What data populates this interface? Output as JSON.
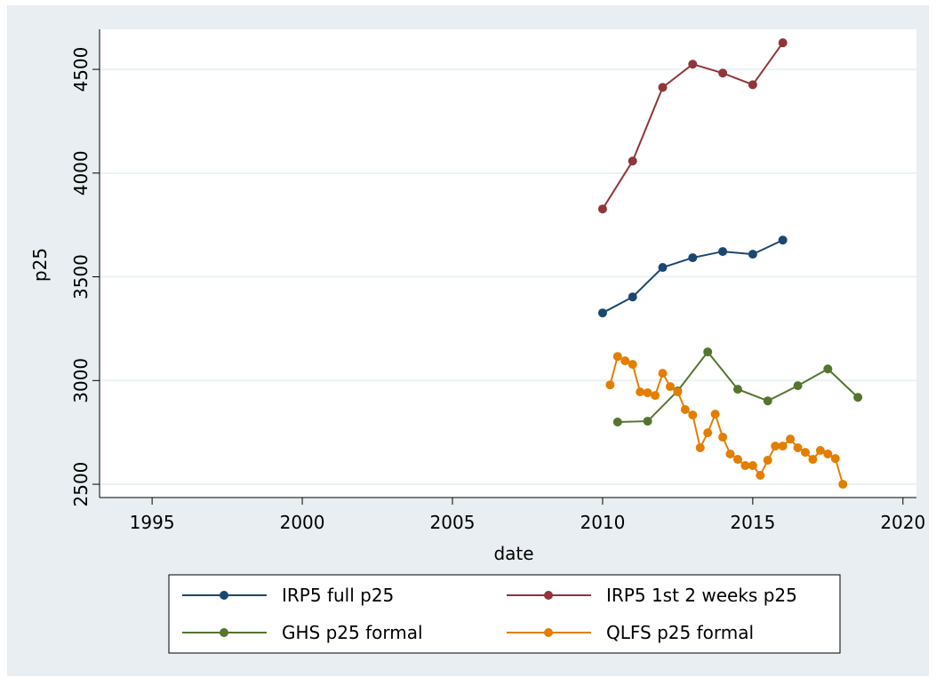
{
  "chart_data": {
    "type": "line",
    "xlabel": "date",
    "ylabel": "p25",
    "xlim": [
      1993.25,
      2020.45
    ],
    "ylim": [
      2436,
      4693
    ],
    "xticks": [
      1995,
      2000,
      2005,
      2010,
      2015,
      2020
    ],
    "yticks": [
      2500,
      3000,
      3500,
      4000,
      4500
    ],
    "grid": true,
    "legend": "bottom",
    "series": [
      {
        "name": "IRP5 full p25",
        "color": "#1a476f",
        "x": [
          2010,
          2011,
          2012,
          2013,
          2014,
          2015,
          2016
        ],
        "values": [
          3326,
          3403,
          3545,
          3592,
          3622,
          3609,
          3677
        ]
      },
      {
        "name": "IRP5 1st 2 weeks p25",
        "color": "#90353b",
        "x": [
          2010,
          2011,
          2012,
          2013,
          2014,
          2015,
          2016
        ],
        "values": [
          3827,
          4058,
          4413,
          4525,
          4482,
          4426,
          4628
        ]
      },
      {
        "name": "GHS p25 formal",
        "color": "#55752f",
        "x": [
          2010.5,
          2011.5,
          2012.5,
          2013.5,
          2014.5,
          2015.5,
          2016.5,
          2017.5,
          2018.5
        ],
        "values": [
          2800,
          2804,
          2950,
          3138,
          2958,
          2902,
          2975,
          3056,
          2919
        ]
      },
      {
        "name": "QLFS p25 formal",
        "color": "#e37e00",
        "x": [
          2010.25,
          2010.5,
          2010.75,
          2011,
          2011.25,
          2011.5,
          2011.75,
          2012,
          2012.25,
          2012.5,
          2012.75,
          2013,
          2013.25,
          2013.5,
          2013.75,
          2014,
          2014.25,
          2014.5,
          2014.75,
          2015,
          2015.25,
          2015.5,
          2015.75,
          2016,
          2016.25,
          2016.5,
          2016.75,
          2017,
          2017.25,
          2017.5,
          2017.75,
          2018
        ],
        "values": [
          2979,
          3116,
          3095,
          3078,
          2945,
          2941,
          2928,
          3035,
          2971,
          2945,
          2860,
          2834,
          2676,
          2748,
          2838,
          2727,
          2646,
          2620,
          2590,
          2590,
          2543,
          2616,
          2684,
          2684,
          2718,
          2676,
          2654,
          2620,
          2663,
          2646,
          2624,
          2500
        ]
      }
    ]
  }
}
